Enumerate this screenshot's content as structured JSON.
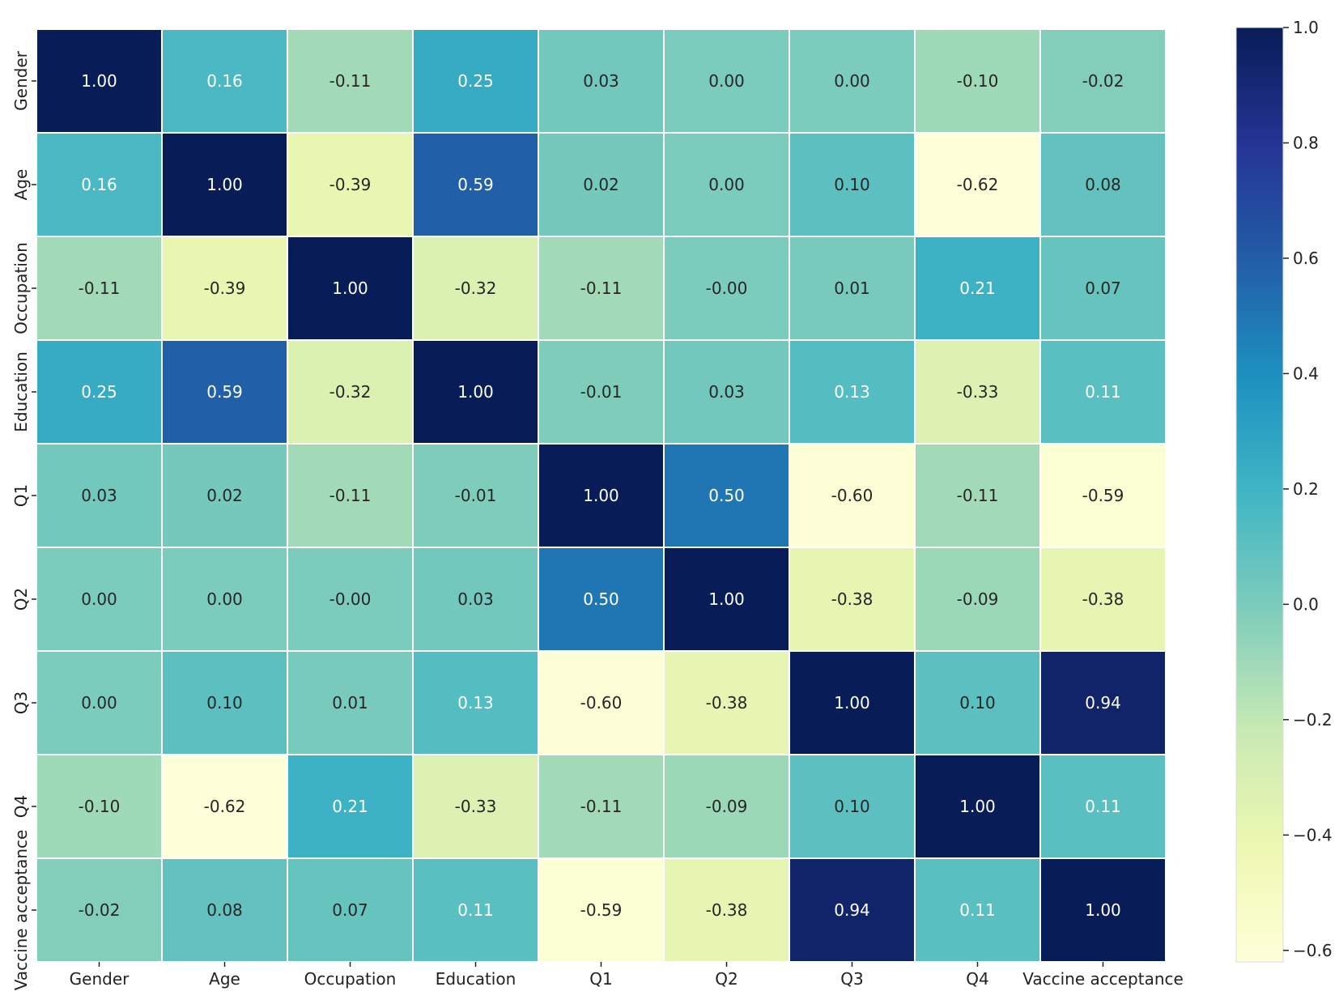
{
  "chart_data": {
    "type": "heatmap",
    "title": "",
    "xlabel": "",
    "ylabel": "",
    "x_labels": [
      "Gender",
      "Age",
      "Occupation",
      "Education",
      "Q1",
      "Q2",
      "Q3",
      "Q4",
      "Vaccine acceptance"
    ],
    "y_labels": [
      "Gender",
      "Age",
      "Occupation",
      "Education",
      "Q1",
      "Q2",
      "Q3",
      "Q4",
      "Vaccine acceptance"
    ],
    "values": [
      [
        1.0,
        0.16,
        -0.11,
        0.25,
        0.03,
        0.0,
        0.0,
        -0.1,
        -0.02
      ],
      [
        0.16,
        1.0,
        -0.39,
        0.59,
        0.02,
        0.0,
        0.1,
        -0.62,
        0.08
      ],
      [
        -0.11,
        -0.39,
        1.0,
        -0.32,
        -0.11,
        -0.0,
        0.01,
        0.21,
        0.07
      ],
      [
        0.25,
        0.59,
        -0.32,
        1.0,
        -0.01,
        0.03,
        0.13,
        -0.33,
        0.11
      ],
      [
        0.03,
        0.02,
        -0.11,
        -0.01,
        1.0,
        0.5,
        -0.6,
        -0.11,
        -0.59
      ],
      [
        0.0,
        0.0,
        -0.0,
        0.03,
        0.5,
        1.0,
        -0.38,
        -0.09,
        -0.38
      ],
      [
        0.0,
        0.1,
        0.01,
        0.13,
        -0.6,
        -0.38,
        1.0,
        0.1,
        0.94
      ],
      [
        -0.1,
        -0.62,
        0.21,
        -0.33,
        -0.11,
        -0.09,
        0.1,
        1.0,
        0.11
      ],
      [
        -0.02,
        0.08,
        0.07,
        0.11,
        -0.59,
        -0.38,
        0.94,
        0.11,
        1.0
      ]
    ],
    "value_labels": [
      [
        "1.00",
        "0.16",
        "-0.11",
        "0.25",
        "0.03",
        "0.00",
        "0.00",
        "-0.10",
        "-0.02"
      ],
      [
        "0.16",
        "1.00",
        "-0.39",
        "0.59",
        "0.02",
        "0.00",
        "0.10",
        "-0.62",
        "0.08"
      ],
      [
        "-0.11",
        "-0.39",
        "1.00",
        "-0.32",
        "-0.11",
        "-0.00",
        "0.01",
        "0.21",
        "0.07"
      ],
      [
        "0.25",
        "0.59",
        "-0.32",
        "1.00",
        "-0.01",
        "0.03",
        "0.13",
        "-0.33",
        "0.11"
      ],
      [
        "0.03",
        "0.02",
        "-0.11",
        "-0.01",
        "1.00",
        "0.50",
        "-0.60",
        "-0.11",
        "-0.59"
      ],
      [
        "0.00",
        "0.00",
        "-0.00",
        "0.03",
        "0.50",
        "1.00",
        "-0.38",
        "-0.09",
        "-0.38"
      ],
      [
        "0.00",
        "0.10",
        "0.01",
        "0.13",
        "-0.60",
        "-0.38",
        "1.00",
        "0.10",
        "0.94"
      ],
      [
        "-0.10",
        "-0.62",
        "0.21",
        "-0.33",
        "-0.11",
        "-0.09",
        "0.10",
        "1.00",
        "0.11"
      ],
      [
        "-0.02",
        "0.08",
        "0.07",
        "0.11",
        "-0.59",
        "-0.38",
        "0.94",
        "0.11",
        "1.00"
      ]
    ],
    "colorbar": {
      "range": [
        -0.62,
        1.0
      ],
      "ticks": [
        1.0,
        0.8,
        0.6,
        0.4,
        0.2,
        0.0,
        -0.2,
        -0.4,
        -0.6
      ],
      "tick_labels": [
        "1.0",
        "0.8",
        "0.6",
        "0.4",
        "0.2",
        "0.0",
        "−0.2",
        "−0.4",
        "−0.6"
      ]
    },
    "colormap": "YlGnBu",
    "colormap_stops": [
      "#ffffd9",
      "#edf8b1",
      "#c7e9b4",
      "#7fcdbb",
      "#41b6c4",
      "#1d91c0",
      "#225ea8",
      "#253494",
      "#081d58"
    ],
    "cell_border_color": "#ffffff",
    "light_text_color": "#ffffff",
    "dark_text_color": "#262626",
    "grid": false,
    "legend": "colorbar-right"
  }
}
